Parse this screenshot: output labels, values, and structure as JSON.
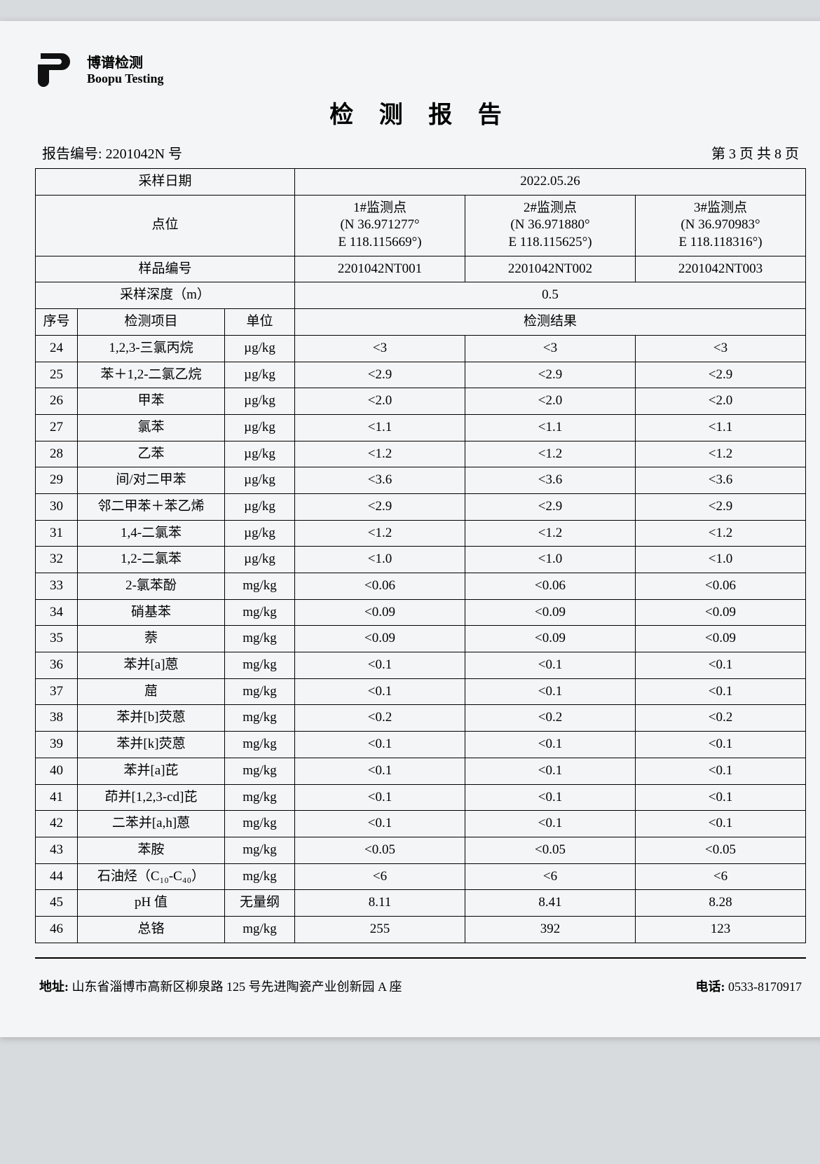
{
  "company": {
    "cn": "博谱检测",
    "en": "Boopu Testing"
  },
  "doc_title": "检 测 报 告",
  "report_no_label": "报告编号:",
  "report_no": "2201042N 号",
  "page_info": "第 3 页 共 8 页",
  "header": {
    "sample_date_label": "采样日期",
    "sample_date": "2022.05.26",
    "point_label": "点位",
    "points": [
      {
        "title": "1#监测点",
        "lat": "(N 36.971277°",
        "lon": "E 118.115669°)"
      },
      {
        "title": "2#监测点",
        "lat": "(N 36.971880°",
        "lon": "E 118.115625°)"
      },
      {
        "title": "3#监测点",
        "lat": "(N 36.970983°",
        "lon": "E 118.118316°)"
      }
    ],
    "sample_no_label": "样品编号",
    "sample_nos": [
      "2201042NT001",
      "2201042NT002",
      "2201042NT003"
    ],
    "depth_label": "采样深度（m）",
    "depth": "0.5",
    "seq_label": "序号",
    "item_label": "检测项目",
    "unit_label": "单位",
    "result_label": "检测结果"
  },
  "rows": [
    {
      "n": "24",
      "item": "1,2,3-三氯丙烷",
      "unit": "µg/kg",
      "v": [
        "<3",
        "<3",
        "<3"
      ]
    },
    {
      "n": "25",
      "item": "苯＋1,2-二氯乙烷",
      "unit": "µg/kg",
      "v": [
        "<2.9",
        "<2.9",
        "<2.9"
      ]
    },
    {
      "n": "26",
      "item": "甲苯",
      "unit": "µg/kg",
      "v": [
        "<2.0",
        "<2.0",
        "<2.0"
      ]
    },
    {
      "n": "27",
      "item": "氯苯",
      "unit": "µg/kg",
      "v": [
        "<1.1",
        "<1.1",
        "<1.1"
      ]
    },
    {
      "n": "28",
      "item": "乙苯",
      "unit": "µg/kg",
      "v": [
        "<1.2",
        "<1.2",
        "<1.2"
      ]
    },
    {
      "n": "29",
      "item": "间/对二甲苯",
      "unit": "µg/kg",
      "v": [
        "<3.6",
        "<3.6",
        "<3.6"
      ]
    },
    {
      "n": "30",
      "item": "邻二甲苯＋苯乙烯",
      "unit": "µg/kg",
      "v": [
        "<2.9",
        "<2.9",
        "<2.9"
      ]
    },
    {
      "n": "31",
      "item": "1,4-二氯苯",
      "unit": "µg/kg",
      "v": [
        "<1.2",
        "<1.2",
        "<1.2"
      ]
    },
    {
      "n": "32",
      "item": "1,2-二氯苯",
      "unit": "µg/kg",
      "v": [
        "<1.0",
        "<1.0",
        "<1.0"
      ]
    },
    {
      "n": "33",
      "item": "2-氯苯酚",
      "unit": "mg/kg",
      "v": [
        "<0.06",
        "<0.06",
        "<0.06"
      ]
    },
    {
      "n": "34",
      "item": "硝基苯",
      "unit": "mg/kg",
      "v": [
        "<0.09",
        "<0.09",
        "<0.09"
      ]
    },
    {
      "n": "35",
      "item": "萘",
      "unit": "mg/kg",
      "v": [
        "<0.09",
        "<0.09",
        "<0.09"
      ]
    },
    {
      "n": "36",
      "item": "苯并[a]蒽",
      "unit": "mg/kg",
      "v": [
        "<0.1",
        "<0.1",
        "<0.1"
      ]
    },
    {
      "n": "37",
      "item": "䓛",
      "unit": "mg/kg",
      "v": [
        "<0.1",
        "<0.1",
        "<0.1"
      ]
    },
    {
      "n": "38",
      "item": "苯并[b]荧蒽",
      "unit": "mg/kg",
      "v": [
        "<0.2",
        "<0.2",
        "<0.2"
      ]
    },
    {
      "n": "39",
      "item": "苯并[k]荧蒽",
      "unit": "mg/kg",
      "v": [
        "<0.1",
        "<0.1",
        "<0.1"
      ]
    },
    {
      "n": "40",
      "item": "苯并[a]芘",
      "unit": "mg/kg",
      "v": [
        "<0.1",
        "<0.1",
        "<0.1"
      ]
    },
    {
      "n": "41",
      "item": "茚并[1,2,3-cd]芘",
      "unit": "mg/kg",
      "v": [
        "<0.1",
        "<0.1",
        "<0.1"
      ]
    },
    {
      "n": "42",
      "item": "二苯并[a,h]蒽",
      "unit": "mg/kg",
      "v": [
        "<0.1",
        "<0.1",
        "<0.1"
      ]
    },
    {
      "n": "43",
      "item": "苯胺",
      "unit": "mg/kg",
      "v": [
        "<0.05",
        "<0.05",
        "<0.05"
      ]
    },
    {
      "n": "44",
      "item": "石油烃（C₁₀-C₄₀）",
      "unit": "mg/kg",
      "v": [
        "<6",
        "<6",
        "<6"
      ]
    },
    {
      "n": "45",
      "item": "pH 值",
      "unit": "无量纲",
      "v": [
        "8.11",
        "8.41",
        "8.28"
      ]
    },
    {
      "n": "46",
      "item": "总铬",
      "unit": "mg/kg",
      "v": [
        "255",
        "392",
        "123"
      ]
    }
  ],
  "footer": {
    "address_label": "地址:",
    "address": "山东省淄博市高新区柳泉路 125 号先进陶瓷产业创新园 A 座",
    "phone_label": "电话:",
    "phone": "0533-8170917"
  }
}
